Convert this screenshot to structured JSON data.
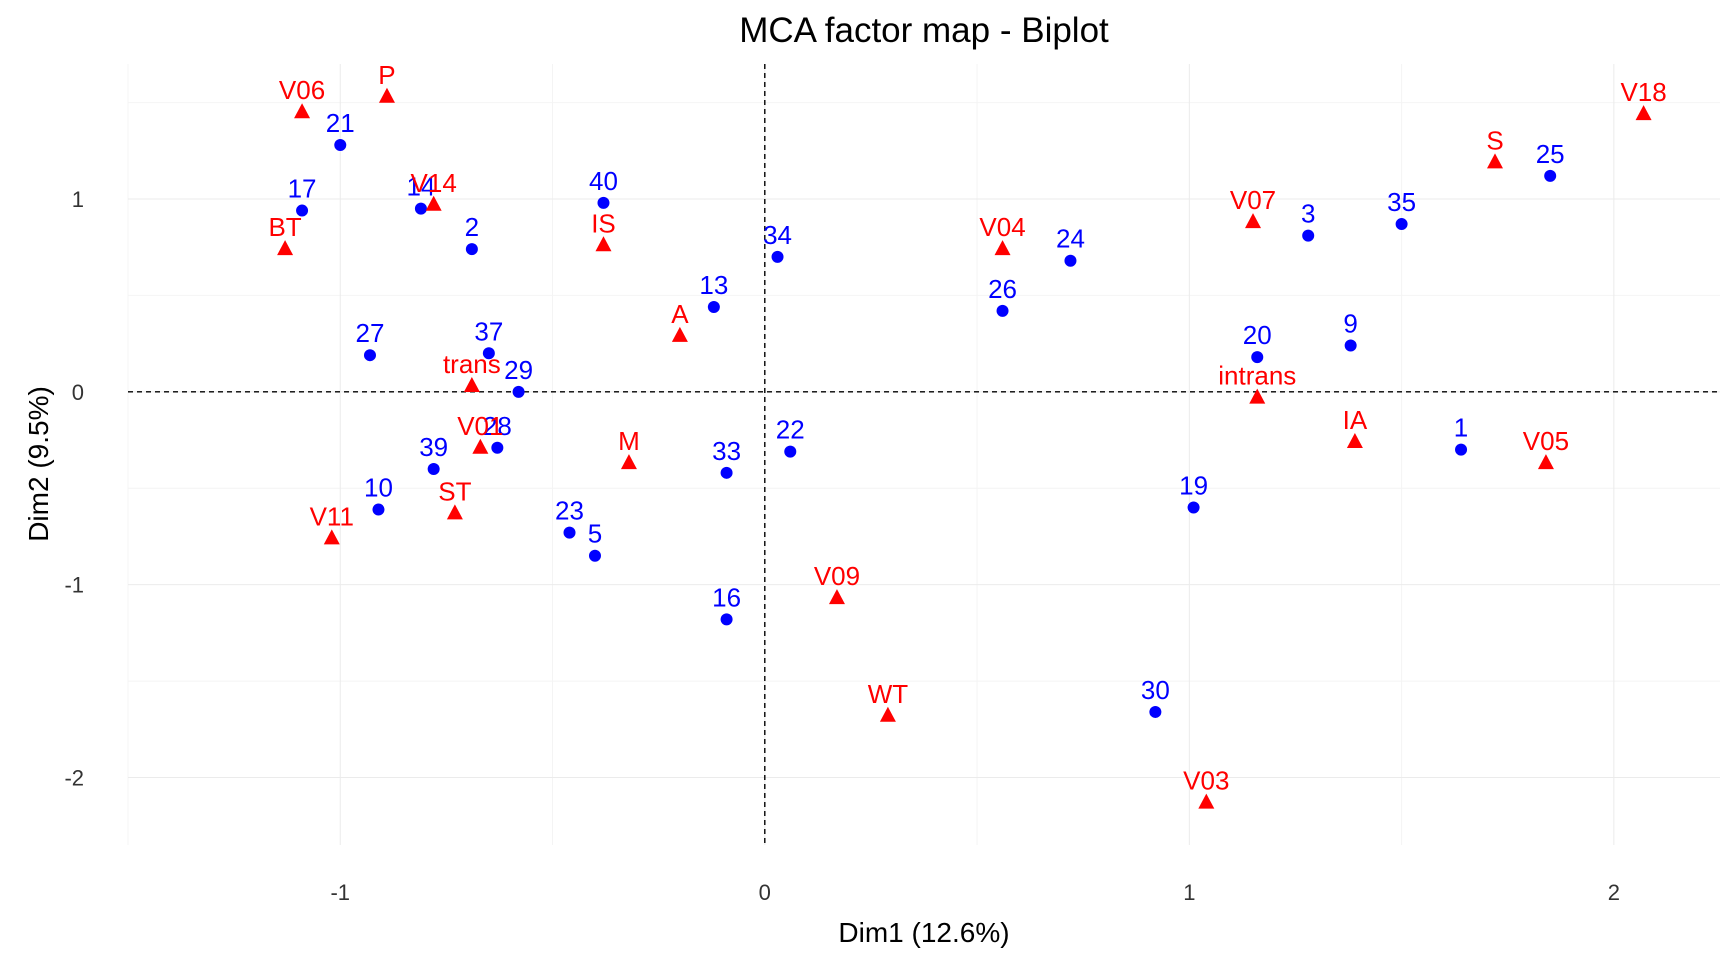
{
  "chart_data": {
    "type": "scatter",
    "title": "MCA factor map - Biplot",
    "xlabel": "Dim1 (12.6%)",
    "ylabel": "Dim2 (9.5%)",
    "xlim": [
      -1.5,
      2.25
    ],
    "ylim": [
      -2.35,
      1.7
    ],
    "xticks": [
      -1,
      0,
      1,
      2
    ],
    "yticks": [
      -2,
      -1,
      0,
      1
    ],
    "grid": true,
    "colors": {
      "individuals": "#0000ff",
      "variables": "#ff0000"
    },
    "series": [
      {
        "marker": "circle",
        "color": "#0000ff",
        "points": [
          {
            "label": "21",
            "x": -1.0,
            "y": 1.28
          },
          {
            "label": "17",
            "x": -1.09,
            "y": 0.94
          },
          {
            "label": "14",
            "x": -0.81,
            "y": 0.95
          },
          {
            "label": "2",
            "x": -0.69,
            "y": 0.74
          },
          {
            "label": "40",
            "x": -0.38,
            "y": 0.98
          },
          {
            "label": "34",
            "x": 0.03,
            "y": 0.7
          },
          {
            "label": "13",
            "x": -0.12,
            "y": 0.44
          },
          {
            "label": "27",
            "x": -0.93,
            "y": 0.19
          },
          {
            "label": "37",
            "x": -0.65,
            "y": 0.2
          },
          {
            "label": "29",
            "x": -0.58,
            "y": 0.0
          },
          {
            "label": "28",
            "x": -0.63,
            "y": -0.29
          },
          {
            "label": "39",
            "x": -0.78,
            "y": -0.4
          },
          {
            "label": "10",
            "x": -0.91,
            "y": -0.61
          },
          {
            "label": "23",
            "x": -0.46,
            "y": -0.73
          },
          {
            "label": "5",
            "x": -0.4,
            "y": -0.85
          },
          {
            "label": "33",
            "x": -0.09,
            "y": -0.42
          },
          {
            "label": "22",
            "x": 0.06,
            "y": -0.31
          },
          {
            "label": "16",
            "x": -0.09,
            "y": -1.18
          },
          {
            "label": "26",
            "x": 0.56,
            "y": 0.42
          },
          {
            "label": "24",
            "x": 0.72,
            "y": 0.68
          },
          {
            "label": "3",
            "x": 1.28,
            "y": 0.81
          },
          {
            "label": "35",
            "x": 1.5,
            "y": 0.87
          },
          {
            "label": "25",
            "x": 1.85,
            "y": 1.12
          },
          {
            "label": "20",
            "x": 1.16,
            "y": 0.18
          },
          {
            "label": "9",
            "x": 1.38,
            "y": 0.24
          },
          {
            "label": "1",
            "x": 1.64,
            "y": -0.3
          },
          {
            "label": "19",
            "x": 1.01,
            "y": -0.6
          },
          {
            "label": "30",
            "x": 0.92,
            "y": -1.66
          }
        ]
      },
      {
        "marker": "triangle",
        "color": "#ff0000",
        "points": [
          {
            "label": "V06",
            "x": -1.09,
            "y": 1.45
          },
          {
            "label": "P",
            "x": -0.89,
            "y": 1.53
          },
          {
            "label": "V14",
            "x": -0.78,
            "y": 0.97
          },
          {
            "label": "BT",
            "x": -1.13,
            "y": 0.74
          },
          {
            "label": "IS",
            "x": -0.38,
            "y": 0.76
          },
          {
            "label": "A",
            "x": -0.2,
            "y": 0.29
          },
          {
            "label": "trans",
            "x": -0.69,
            "y": 0.03
          },
          {
            "label": "V01",
            "x": -0.67,
            "y": -0.29
          },
          {
            "label": "M",
            "x": -0.32,
            "y": -0.37
          },
          {
            "label": "ST",
            "x": -0.73,
            "y": -0.63
          },
          {
            "label": "V11",
            "x": -1.02,
            "y": -0.76
          },
          {
            "label": "V09",
            "x": 0.17,
            "y": -1.07
          },
          {
            "label": "WT",
            "x": 0.29,
            "y": -1.68
          },
          {
            "label": "V04",
            "x": 0.56,
            "y": 0.74
          },
          {
            "label": "V07",
            "x": 1.15,
            "y": 0.88
          },
          {
            "label": "S",
            "x": 1.72,
            "y": 1.19
          },
          {
            "label": "V18",
            "x": 2.07,
            "y": 1.44
          },
          {
            "label": "intrans",
            "x": 1.16,
            "y": -0.03
          },
          {
            "label": "IA",
            "x": 1.39,
            "y": -0.26
          },
          {
            "label": "V05",
            "x": 1.84,
            "y": -0.37
          },
          {
            "label": "V03",
            "x": 1.04,
            "y": -2.13
          }
        ]
      }
    ]
  }
}
